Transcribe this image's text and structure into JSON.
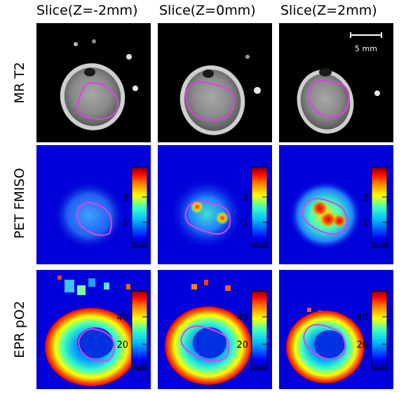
{
  "column_titles": [
    "Slice(Z=-2mm)",
    "Slice(Z=0mm)",
    "Slice(Z=2mm)"
  ],
  "row_labels": [
    "MR T2",
    "PET FMISO",
    "EPR pO2"
  ],
  "scale_bar": {
    "label": "5 mm"
  },
  "colorbars": {
    "pet": {
      "ticks": [
        "2",
        "1"
      ]
    },
    "epr": {
      "ticks": [
        "40",
        "20"
      ]
    }
  },
  "colors": {
    "tumor_contour": "#e040e8",
    "colormap": [
      "#00007f",
      "#0000ff",
      "#00bfff",
      "#3cffc3",
      "#ffff00",
      "#ff7f00",
      "#ff0000",
      "#7f0000"
    ]
  }
}
